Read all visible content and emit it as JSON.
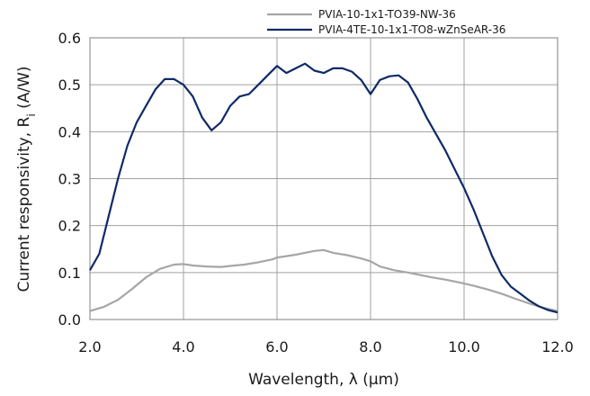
{
  "chart_data": {
    "type": "line",
    "title": "",
    "xlabel": "Wavelength, λ (µm)",
    "ylabel_prefix": "Current responsivity, R",
    "ylabel_subscript": "i",
    "ylabel_suffix": " (A/W)",
    "xlim": [
      2.0,
      12.0
    ],
    "ylim": [
      0.0,
      0.6
    ],
    "xticks": [
      "2.0",
      "4.0",
      "6.0",
      "8.0",
      "10.0",
      "12.0"
    ],
    "yticks": [
      "0.0",
      "0.1",
      "0.2",
      "0.3",
      "0.4",
      "0.5",
      "0.6"
    ],
    "grid": true,
    "legend_position": "top-right",
    "series": [
      {
        "name": "PVIA-10-1x1-TO39-NW-36",
        "color": "#a6a6a6",
        "x": [
          2.0,
          2.3,
          2.6,
          2.9,
          3.2,
          3.5,
          3.8,
          4.0,
          4.2,
          4.5,
          4.8,
          5.0,
          5.3,
          5.6,
          5.9,
          6.0,
          6.2,
          6.4,
          6.6,
          6.8,
          7.0,
          7.2,
          7.5,
          7.8,
          8.0,
          8.2,
          8.5,
          8.8,
          9.0,
          9.3,
          9.6,
          9.9,
          10.2,
          10.5,
          10.8,
          11.1,
          11.4,
          11.7,
          12.0
        ],
        "y": [
          0.018,
          0.027,
          0.042,
          0.065,
          0.09,
          0.108,
          0.117,
          0.118,
          0.115,
          0.113,
          0.112,
          0.114,
          0.117,
          0.122,
          0.128,
          0.132,
          0.135,
          0.138,
          0.142,
          0.146,
          0.148,
          0.142,
          0.137,
          0.13,
          0.124,
          0.113,
          0.105,
          0.1,
          0.096,
          0.09,
          0.085,
          0.079,
          0.072,
          0.064,
          0.055,
          0.044,
          0.034,
          0.025,
          0.018
        ]
      },
      {
        "name": "PVIA-4TE-10-1x1-TO8-wZnSeAR-36",
        "color": "#0f2a66",
        "x": [
          2.0,
          2.2,
          2.4,
          2.6,
          2.8,
          3.0,
          3.2,
          3.4,
          3.6,
          3.8,
          4.0,
          4.2,
          4.4,
          4.6,
          4.8,
          5.0,
          5.2,
          5.4,
          5.6,
          5.8,
          6.0,
          6.2,
          6.4,
          6.6,
          6.8,
          7.0,
          7.2,
          7.4,
          7.6,
          7.8,
          8.0,
          8.2,
          8.4,
          8.6,
          8.8,
          9.0,
          9.2,
          9.4,
          9.6,
          9.8,
          10.0,
          10.2,
          10.4,
          10.6,
          10.8,
          11.0,
          11.2,
          11.4,
          11.6,
          11.8,
          12.0
        ],
        "y": [
          0.105,
          0.14,
          0.22,
          0.3,
          0.37,
          0.42,
          0.455,
          0.49,
          0.512,
          0.512,
          0.5,
          0.475,
          0.43,
          0.403,
          0.42,
          0.455,
          0.475,
          0.48,
          0.5,
          0.52,
          0.54,
          0.525,
          0.535,
          0.545,
          0.53,
          0.525,
          0.535,
          0.535,
          0.528,
          0.51,
          0.48,
          0.51,
          0.518,
          0.52,
          0.505,
          0.47,
          0.43,
          0.395,
          0.36,
          0.32,
          0.28,
          0.235,
          0.185,
          0.135,
          0.095,
          0.07,
          0.055,
          0.04,
          0.028,
          0.02,
          0.015
        ]
      }
    ]
  }
}
